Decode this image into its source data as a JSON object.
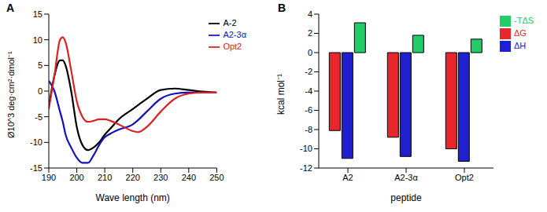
{
  "chart_data": [
    {
      "type": "line",
      "title": "A",
      "x_label": "Wave length (nm)",
      "y_label": "Ø10^3 deg·cm²·dmol⁻¹",
      "x": [
        190,
        192,
        194,
        195,
        196,
        198,
        200,
        202,
        204,
        206,
        208,
        210,
        212,
        215,
        220,
        222,
        225,
        230,
        235,
        240,
        245,
        250
      ],
      "series": [
        {
          "name": "A-2",
          "color": "#000000",
          "values": [
            -3,
            3,
            6,
            6,
            5,
            0,
            -7,
            -10.5,
            -11.5,
            -11,
            -10,
            -8.5,
            -7.3,
            -5.5,
            -3.5,
            -2.7,
            -1.5,
            0.2,
            0.5,
            0.2,
            -0.1,
            -0.3
          ]
        },
        {
          "name": "A2-3α",
          "color": "#1010c0",
          "values": [
            2,
            0,
            -4,
            -6,
            -8.5,
            -11,
            -13,
            -14,
            -14,
            -12.5,
            -10.5,
            -9,
            -8.3,
            -7.5,
            -6.5,
            -5.6,
            -4,
            -1.5,
            -0.5,
            -0.3,
            -0.3,
            -0.3
          ]
        },
        {
          "name": "Opt2",
          "color": "#e02020",
          "values": [
            -3.5,
            3,
            10,
            10.5,
            9.5,
            4,
            -2,
            -5,
            -6,
            -5.8,
            -5.5,
            -5.5,
            -5.8,
            -6.5,
            -7.8,
            -8,
            -7,
            -4,
            -1.5,
            -0.5,
            -0.3,
            -0.3
          ]
        }
      ],
      "xlim": [
        190,
        250
      ],
      "xticks": [
        190,
        200,
        210,
        220,
        230,
        240,
        250
      ],
      "ylim": [
        -15,
        15
      ],
      "yticks": [
        -15,
        -10,
        -5,
        0,
        5,
        10,
        15
      ],
      "grid": false,
      "legend": "upper right"
    },
    {
      "type": "bar",
      "title": "B",
      "x_label": "peptide",
      "y_label": "kcal mol⁻¹",
      "categories": [
        "A2",
        "A2-3α",
        "Opt2"
      ],
      "series": [
        {
          "name": "ΔG",
          "color": "#e8262b",
          "values": [
            -8.1,
            -8.8,
            -10.0
          ]
        },
        {
          "name": "ΔH",
          "color": "#2020d0",
          "values": [
            -11.0,
            -10.8,
            -11.3
          ]
        },
        {
          "name": "-TΔS",
          "color": "#22cc66",
          "values": [
            3.1,
            1.8,
            1.4
          ]
        }
      ],
      "ylim": [
        -12,
        4
      ],
      "yticks": [
        -12,
        -10,
        -8,
        -6,
        -4,
        -2,
        0,
        2,
        4
      ],
      "grid": false,
      "legend": "right"
    }
  ]
}
